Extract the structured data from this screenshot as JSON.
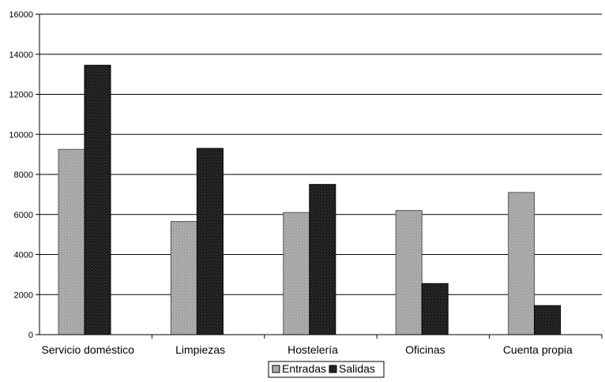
{
  "chart_data": {
    "type": "bar",
    "title": "",
    "xlabel": "",
    "ylabel": "",
    "categories": [
      "Servicio doméstico",
      "Limpiezas",
      "Hostelería",
      "Oficinas",
      "Cuenta propia"
    ],
    "series": [
      {
        "name": "Entradas",
        "values": [
          9250,
          5650,
          6100,
          6200,
          7100
        ],
        "color": "#a9a9a9",
        "pattern": "light-stipple"
      },
      {
        "name": "Salidas",
        "values": [
          13450,
          9300,
          7500,
          2550,
          1450
        ],
        "color": "#1c1c1c",
        "pattern": "dark-stipple"
      }
    ],
    "ylim": [
      0,
      16000
    ],
    "yticks": [
      "0",
      "2000",
      "4000",
      "6000",
      "8000",
      "10000",
      "12000",
      "14000",
      "16000"
    ],
    "grid": true,
    "legend_position": "bottom"
  }
}
